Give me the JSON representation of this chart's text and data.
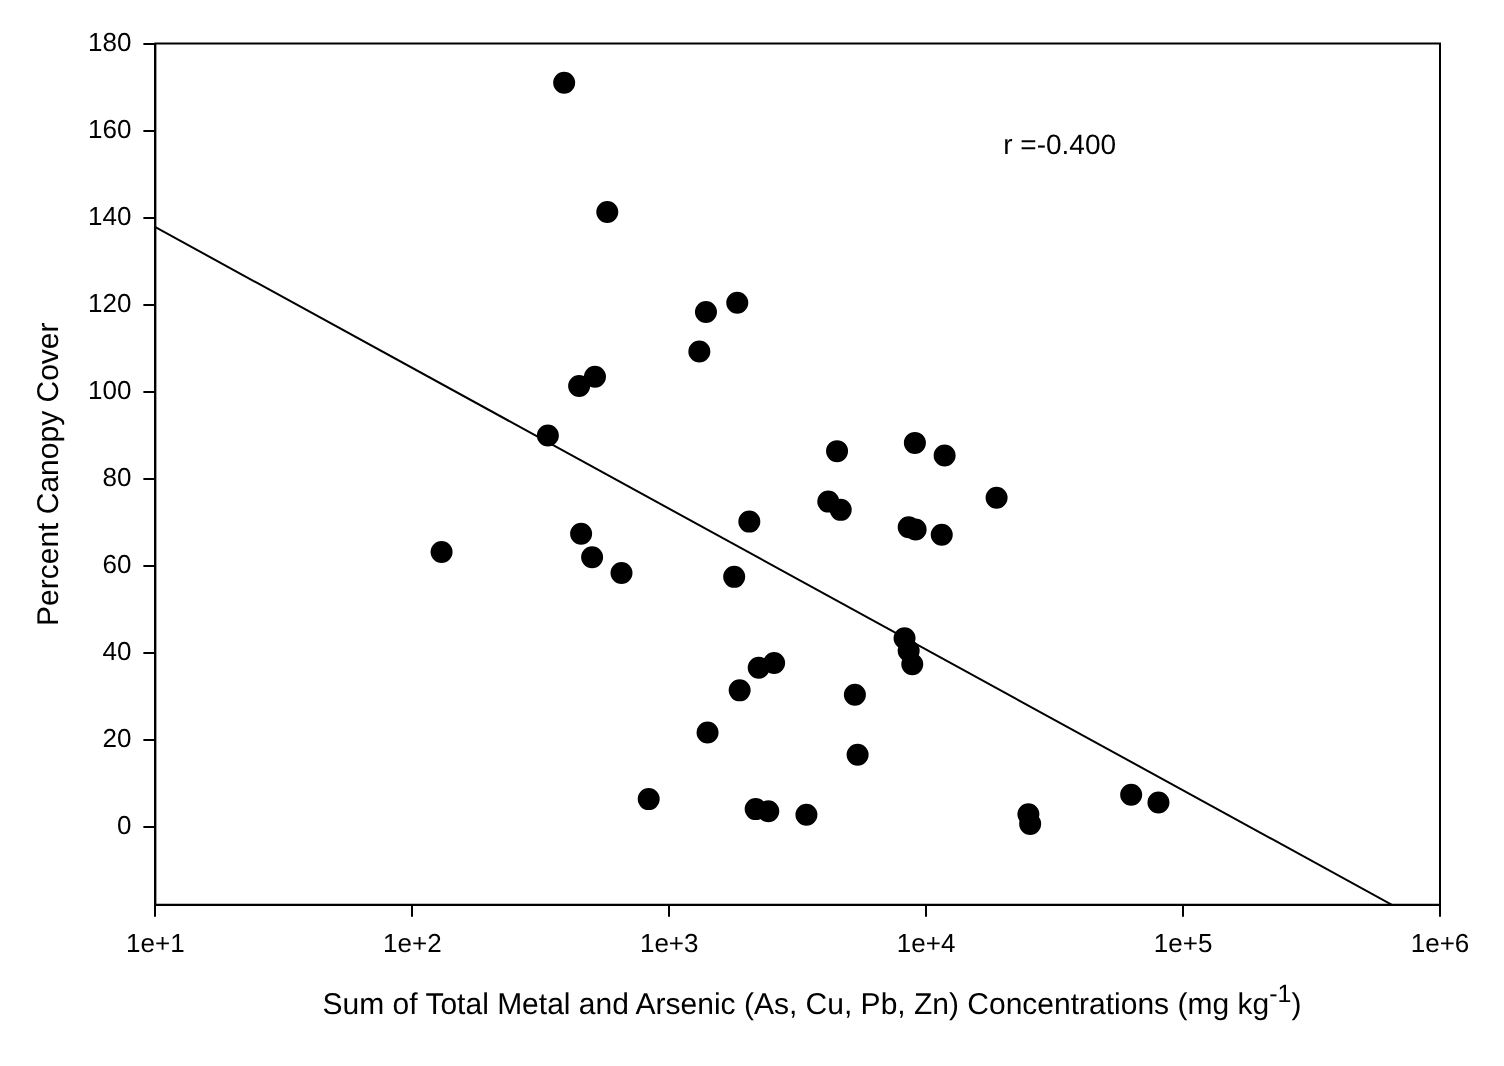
{
  "chart_data": {
    "type": "scatter",
    "xlabel": "Sum of Total Metal and Arsenic (As, Cu, Pb, Zn) Concentrations (mg kg$^{-1}$)",
    "ylabel": "Percent Canopy Cover",
    "annotations": [
      "r =-0.400"
    ],
    "log": "x",
    "grid": false,
    "legend": false,
    "marker": "circle",
    "xlim": [
      10,
      1000000
    ],
    "xticks": [
      {
        "value": 10,
        "label": "1e+1"
      },
      {
        "value": 100,
        "label": "1e+2"
      },
      {
        "value": 1000,
        "label": "1e+3"
      },
      {
        "value": 10000,
        "label": "1e+4"
      },
      {
        "value": 100000,
        "label": "1e+5"
      },
      {
        "value": 1000000,
        "label": "1e+6"
      }
    ],
    "ylim": [
      -18,
      180
    ],
    "yticks": [
      0,
      20,
      40,
      60,
      80,
      100,
      120,
      140,
      160,
      180
    ],
    "series": [
      {
        "color": "#000000",
        "x": [
          390,
          574,
          1390,
          1840,
          1310,
          446,
          514,
          337,
          130,
          454,
          501,
          652,
          2050,
          1790,
          2230,
          2560,
          1880,
          1410,
          832,
          2170,
          2430,
          3420,
          4160,
          4650,
          18800,
          8550,
          9100,
          11500,
          8240,
          8550,
          8830,
          5280,
          5410,
          25000,
          25400,
          62800,
          80200,
          4500,
          9040,
          11800
        ],
        "values": [
          171,
          141.3,
          118.3,
          120.4,
          109.2,
          101.3,
          103.4,
          89.9,
          63.1,
          67.3,
          61.9,
          58.3,
          70.1,
          57.4,
          36.5,
          37.6,
          31.3,
          21.6,
          6.3,
          4.0,
          3.5,
          2.7,
          74.7,
          72.8,
          75.6,
          68.8,
          68.3,
          67.1,
          43.3,
          40.4,
          37.3,
          30.3,
          16.5,
          2.8,
          0.6,
          7.3,
          5.5,
          86.3,
          88.2,
          85.3
        ]
      },
      {
        "type": "line",
        "color": "#000000",
        "marker": "none",
        "x": [
          10,
          650000
        ],
        "values": [
          137.8,
          -18
        ]
      }
    ]
  }
}
